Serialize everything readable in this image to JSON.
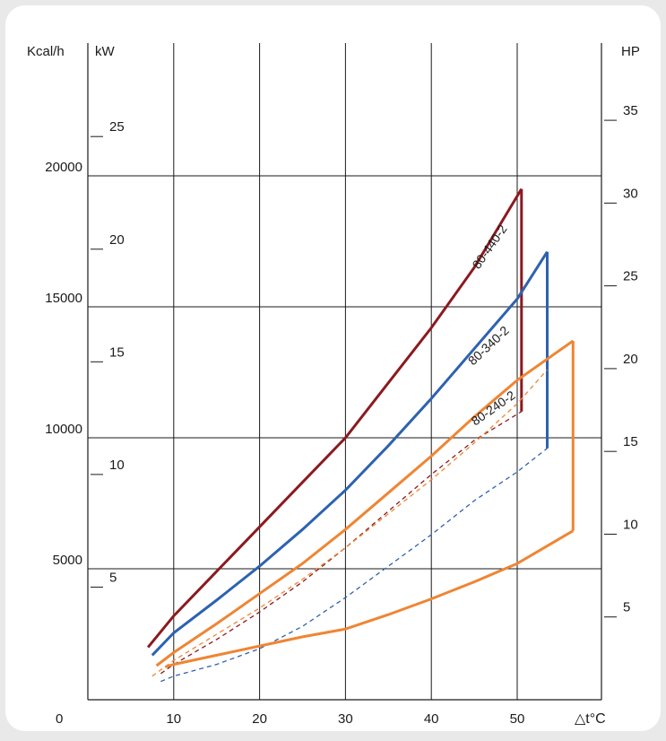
{
  "chart_data": {
    "type": "line",
    "x_label": "△t°C",
    "y_left_outer_label": "Kcal/h",
    "y_left_inner_label": "kW",
    "y_right_label": "HP",
    "x_ticks": [
      "10",
      "20",
      "30",
      "40",
      "50"
    ],
    "x_origin_label": "0",
    "kcal_ticks": [
      "5000",
      "10000",
      "15000",
      "20000"
    ],
    "kw_ticks": [
      "5",
      "10",
      "15",
      "20",
      "25"
    ],
    "hp_ticks": [
      "5",
      "10",
      "15",
      "20",
      "25",
      "30",
      "35"
    ],
    "xlim": [
      0,
      60
    ],
    "ylim_kcal": [
      0,
      20000
    ],
    "colors": {
      "80-440-2": "#8b1a1f",
      "80-340-2": "#2d62b0",
      "80-240-2": "#ef8533",
      "grid": "#1a1a1a",
      "background": "#ffffff"
    },
    "series": [
      {
        "name": "80-440-2",
        "label": "80-440-2",
        "color_key": "80-440-2",
        "upper": [
          [
            7,
            2000
          ],
          [
            10,
            3200
          ],
          [
            15,
            4900
          ],
          [
            20,
            6600
          ],
          [
            25,
            8300
          ],
          [
            30,
            10000
          ],
          [
            35,
            12100
          ],
          [
            40,
            14200
          ],
          [
            45,
            16500
          ],
          [
            50.5,
            19500
          ]
        ],
        "lower_dashed": [
          [
            8.5,
            1000
          ],
          [
            10,
            1350
          ],
          [
            15,
            2300
          ],
          [
            20,
            3350
          ],
          [
            25,
            4500
          ],
          [
            30,
            5800
          ],
          [
            35,
            7200
          ],
          [
            40,
            8600
          ],
          [
            45,
            9900
          ],
          [
            50.5,
            11000
          ]
        ],
        "drop": [
          [
            50.5,
            19500
          ],
          [
            50.5,
            11000
          ]
        ]
      },
      {
        "name": "80-340-2",
        "label": "80-340-2",
        "color_key": "80-340-2",
        "upper": [
          [
            7.5,
            1700
          ],
          [
            10,
            2550
          ],
          [
            15,
            3800
          ],
          [
            20,
            5100
          ],
          [
            25,
            6500
          ],
          [
            30,
            8000
          ],
          [
            35,
            9700
          ],
          [
            40,
            11500
          ],
          [
            45,
            13400
          ],
          [
            50,
            15300
          ],
          [
            53.5,
            17100
          ]
        ],
        "lower_dashed": [
          [
            8.5,
            700
          ],
          [
            10,
            900
          ],
          [
            15,
            1350
          ],
          [
            20,
            1950
          ],
          [
            25,
            2800
          ],
          [
            30,
            3900
          ],
          [
            35,
            5100
          ],
          [
            40,
            6300
          ],
          [
            45,
            7600
          ],
          [
            50,
            8700
          ],
          [
            53.5,
            9600
          ]
        ],
        "drop": [
          [
            53.5,
            17100
          ],
          [
            53.5,
            9600
          ]
        ]
      },
      {
        "name": "80-240-2",
        "label": "80-240-2",
        "color_key": "80-240-2",
        "upper": [
          [
            8,
            1300
          ],
          [
            10,
            1800
          ],
          [
            15,
            2900
          ],
          [
            20,
            4050
          ],
          [
            25,
            5200
          ],
          [
            30,
            6500
          ],
          [
            35,
            7900
          ],
          [
            40,
            9300
          ],
          [
            45,
            10800
          ],
          [
            50,
            12200
          ],
          [
            56.5,
            13700
          ]
        ],
        "middle": [
          [
            7.5,
            900
          ],
          [
            10,
            1500
          ],
          [
            15,
            2500
          ],
          [
            20,
            3500
          ],
          [
            25,
            4600
          ],
          [
            30,
            5800
          ],
          [
            35,
            7100
          ],
          [
            40,
            8400
          ],
          [
            45,
            9800
          ],
          [
            50,
            11300
          ],
          [
            53.5,
            12600
          ]
        ],
        "lower": [
          [
            9,
            1250
          ],
          [
            10,
            1350
          ],
          [
            15,
            1700
          ],
          [
            20,
            2050
          ],
          [
            25,
            2400
          ],
          [
            30,
            2700
          ],
          [
            35,
            3250
          ],
          [
            40,
            3850
          ],
          [
            45,
            4500
          ],
          [
            50,
            5200
          ],
          [
            56.5,
            6450
          ]
        ],
        "drop": [
          [
            56.5,
            13700
          ],
          [
            56.5,
            6450
          ]
        ]
      }
    ]
  }
}
